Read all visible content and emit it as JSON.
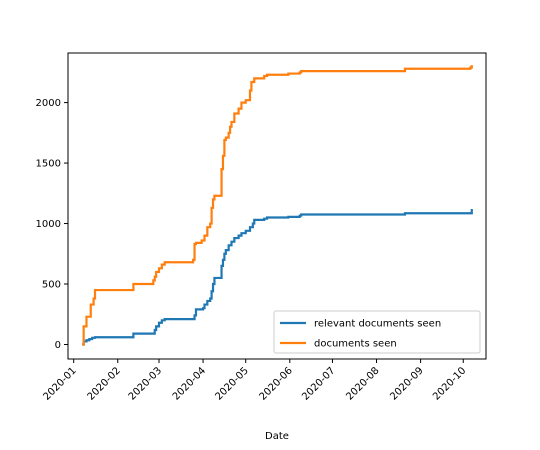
{
  "chart_data": {
    "type": "line",
    "title": "",
    "xlabel": "Date",
    "ylabel": "",
    "x_axis_type": "date",
    "xlim": [
      "2019-12-28",
      "2020-10-17"
    ],
    "ylim": [
      -120,
      2410
    ],
    "x_ticks": [
      {
        "date": "2020-01-01",
        "label": "2020-01"
      },
      {
        "date": "2020-02-01",
        "label": "2020-02"
      },
      {
        "date": "2020-03-01",
        "label": "2020-03"
      },
      {
        "date": "2020-04-01",
        "label": "2020-04"
      },
      {
        "date": "2020-05-01",
        "label": "2020-05"
      },
      {
        "date": "2020-06-01",
        "label": "2020-06"
      },
      {
        "date": "2020-07-01",
        "label": "2020-07"
      },
      {
        "date": "2020-08-01",
        "label": "2020-08"
      },
      {
        "date": "2020-09-01",
        "label": "2020-09"
      },
      {
        "date": "2020-10-01",
        "label": "2020-10"
      }
    ],
    "y_ticks": [
      0,
      500,
      1000,
      1500,
      2000
    ],
    "grid": false,
    "legend_position": "lower-right",
    "step": true,
    "series": [
      {
        "name": "relevant documents seen",
        "color": "#1f77b4",
        "points": [
          [
            "2020-01-07",
            0
          ],
          [
            "2020-01-08",
            25
          ],
          [
            "2020-01-10",
            35
          ],
          [
            "2020-01-12",
            45
          ],
          [
            "2020-01-14",
            55
          ],
          [
            "2020-01-16",
            60
          ],
          [
            "2020-02-11",
            60
          ],
          [
            "2020-02-12",
            90
          ],
          [
            "2020-02-26",
            90
          ],
          [
            "2020-02-27",
            120
          ],
          [
            "2020-02-28",
            150
          ],
          [
            "2020-03-01",
            180
          ],
          [
            "2020-03-03",
            200
          ],
          [
            "2020-03-05",
            210
          ],
          [
            "2020-03-25",
            210
          ],
          [
            "2020-03-26",
            240
          ],
          [
            "2020-03-27",
            290
          ],
          [
            "2020-04-01",
            300
          ],
          [
            "2020-04-02",
            330
          ],
          [
            "2020-04-04",
            360
          ],
          [
            "2020-04-06",
            380
          ],
          [
            "2020-04-07",
            440
          ],
          [
            "2020-04-08",
            500
          ],
          [
            "2020-04-09",
            550
          ],
          [
            "2020-04-13",
            550
          ],
          [
            "2020-04-14",
            650
          ],
          [
            "2020-04-15",
            700
          ],
          [
            "2020-04-16",
            750
          ],
          [
            "2020-04-17",
            780
          ],
          [
            "2020-04-19",
            820
          ],
          [
            "2020-04-21",
            850
          ],
          [
            "2020-04-23",
            880
          ],
          [
            "2020-04-26",
            900
          ],
          [
            "2020-04-28",
            920
          ],
          [
            "2020-05-01",
            940
          ],
          [
            "2020-05-04",
            970
          ],
          [
            "2020-05-06",
            1000
          ],
          [
            "2020-05-07",
            1030
          ],
          [
            "2020-05-14",
            1040
          ],
          [
            "2020-05-16",
            1050
          ],
          [
            "2020-05-31",
            1055
          ],
          [
            "2020-06-08",
            1065
          ],
          [
            "2020-06-09",
            1075
          ],
          [
            "2020-08-20",
            1075
          ],
          [
            "2020-08-21",
            1085
          ],
          [
            "2020-10-06",
            1085
          ],
          [
            "2020-10-07",
            1120
          ]
        ]
      },
      {
        "name": "documents seen",
        "color": "#ff7f0e",
        "points": [
          [
            "2020-01-07",
            0
          ],
          [
            "2020-01-08",
            150
          ],
          [
            "2020-01-10",
            230
          ],
          [
            "2020-01-13",
            330
          ],
          [
            "2020-01-15",
            380
          ],
          [
            "2020-01-16",
            450
          ],
          [
            "2020-02-11",
            450
          ],
          [
            "2020-02-12",
            500
          ],
          [
            "2020-02-25",
            500
          ],
          [
            "2020-02-26",
            530
          ],
          [
            "2020-02-27",
            560
          ],
          [
            "2020-02-28",
            600
          ],
          [
            "2020-03-01",
            630
          ],
          [
            "2020-03-03",
            660
          ],
          [
            "2020-03-05",
            680
          ],
          [
            "2020-03-24",
            680
          ],
          [
            "2020-03-25",
            700
          ],
          [
            "2020-03-26",
            830
          ],
          [
            "2020-03-27",
            840
          ],
          [
            "2020-03-31",
            860
          ],
          [
            "2020-04-02",
            900
          ],
          [
            "2020-04-04",
            970
          ],
          [
            "2020-04-06",
            1000
          ],
          [
            "2020-04-07",
            1130
          ],
          [
            "2020-04-08",
            1200
          ],
          [
            "2020-04-09",
            1230
          ],
          [
            "2020-04-13",
            1230
          ],
          [
            "2020-04-14",
            1450
          ],
          [
            "2020-04-15",
            1560
          ],
          [
            "2020-04-16",
            1690
          ],
          [
            "2020-04-17",
            1710
          ],
          [
            "2020-04-19",
            1750
          ],
          [
            "2020-04-20",
            1800
          ],
          [
            "2020-04-21",
            1840
          ],
          [
            "2020-04-23",
            1910
          ],
          [
            "2020-04-26",
            1950
          ],
          [
            "2020-04-28",
            2000
          ],
          [
            "2020-05-01",
            2020
          ],
          [
            "2020-05-04",
            2100
          ],
          [
            "2020-05-05",
            2170
          ],
          [
            "2020-05-07",
            2200
          ],
          [
            "2020-05-14",
            2220
          ],
          [
            "2020-05-16",
            2230
          ],
          [
            "2020-05-31",
            2240
          ],
          [
            "2020-06-08",
            2250
          ],
          [
            "2020-06-09",
            2260
          ],
          [
            "2020-08-20",
            2260
          ],
          [
            "2020-08-21",
            2280
          ],
          [
            "2020-10-05",
            2280
          ],
          [
            "2020-10-06",
            2290
          ],
          [
            "2020-10-07",
            2310
          ]
        ]
      }
    ]
  }
}
